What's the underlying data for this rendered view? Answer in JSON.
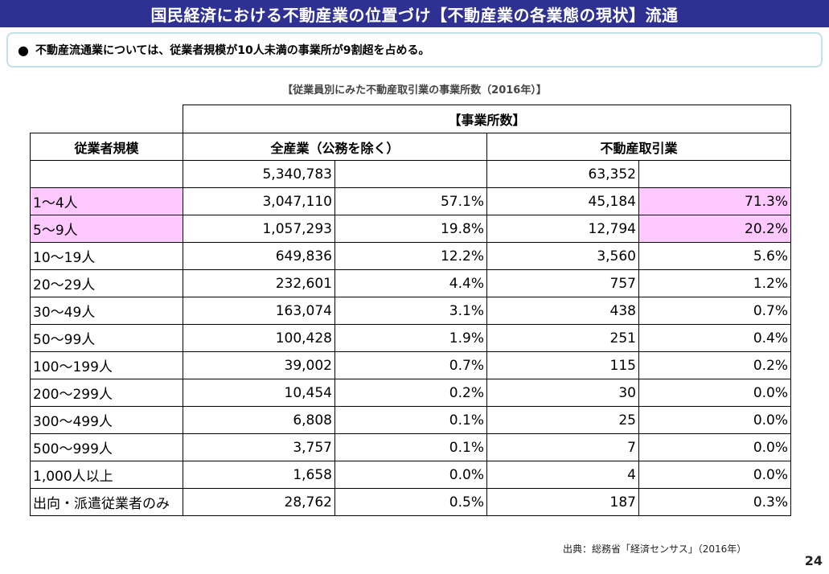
{
  "title": "国民経済における不動産業の位置づけ【不動産業の各業態の現状】流通",
  "summary": {
    "bullet": "●",
    "text": "不動産流通業については、従業者規模が10人未満の事業所が9割超を占める。"
  },
  "table_caption": "【従業員別にみた不動産取引業の事業所数（2016年）】",
  "table": {
    "group_header": "【事業所数】",
    "col_headers": {
      "scale": "従業者規模",
      "all": "全産業（公務を除く）",
      "realestate": "不動産取引業"
    },
    "total_row": {
      "all_count": "5,340,783",
      "re_count": "63,352"
    },
    "rows": [
      {
        "label": "1～4人",
        "all_count": "3,047,110",
        "all_pct": "57.1%",
        "re_count": "45,184",
        "re_pct": "71.3%"
      },
      {
        "label": "5～9人",
        "all_count": "1,057,293",
        "all_pct": "19.8%",
        "re_count": "12,794",
        "re_pct": "20.2%"
      },
      {
        "label": "10～19人",
        "all_count": "649,836",
        "all_pct": "12.2%",
        "re_count": "3,560",
        "re_pct": "5.6%"
      },
      {
        "label": "20～29人",
        "all_count": "232,601",
        "all_pct": "4.4%",
        "re_count": "757",
        "re_pct": "1.2%"
      },
      {
        "label": "30～49人",
        "all_count": "163,074",
        "all_pct": "3.1%",
        "re_count": "438",
        "re_pct": "0.7%"
      },
      {
        "label": "50～99人",
        "all_count": "100,428",
        "all_pct": "1.9%",
        "re_count": "251",
        "re_pct": "0.4%"
      },
      {
        "label": "100～199人",
        "all_count": "39,002",
        "all_pct": "0.7%",
        "re_count": "115",
        "re_pct": "0.2%"
      },
      {
        "label": "200～299人",
        "all_count": "10,454",
        "all_pct": "0.2%",
        "re_count": "30",
        "re_pct": "0.0%"
      },
      {
        "label": "300～499人",
        "all_count": "6,808",
        "all_pct": "0.1%",
        "re_count": "25",
        "re_pct": "0.0%"
      },
      {
        "label": "500～999人",
        "all_count": "3,757",
        "all_pct": "0.1%",
        "re_count": "7",
        "re_pct": "0.0%"
      },
      {
        "label": "1,000人以上",
        "all_count": "1,658",
        "all_pct": "0.0%",
        "re_count": "4",
        "re_pct": "0.0%"
      },
      {
        "label": "出向・派遣従業者のみ",
        "all_count": "28,762",
        "all_pct": "0.5%",
        "re_count": "187",
        "re_pct": "0.3%"
      }
    ]
  },
  "source": "出典：総務省「経済センサス」（2016年）",
  "page_number": "24",
  "colors": {
    "title_bg": "#2e3192",
    "highlight": "#fdc9fe",
    "box_border": "#bfe3e8"
  }
}
